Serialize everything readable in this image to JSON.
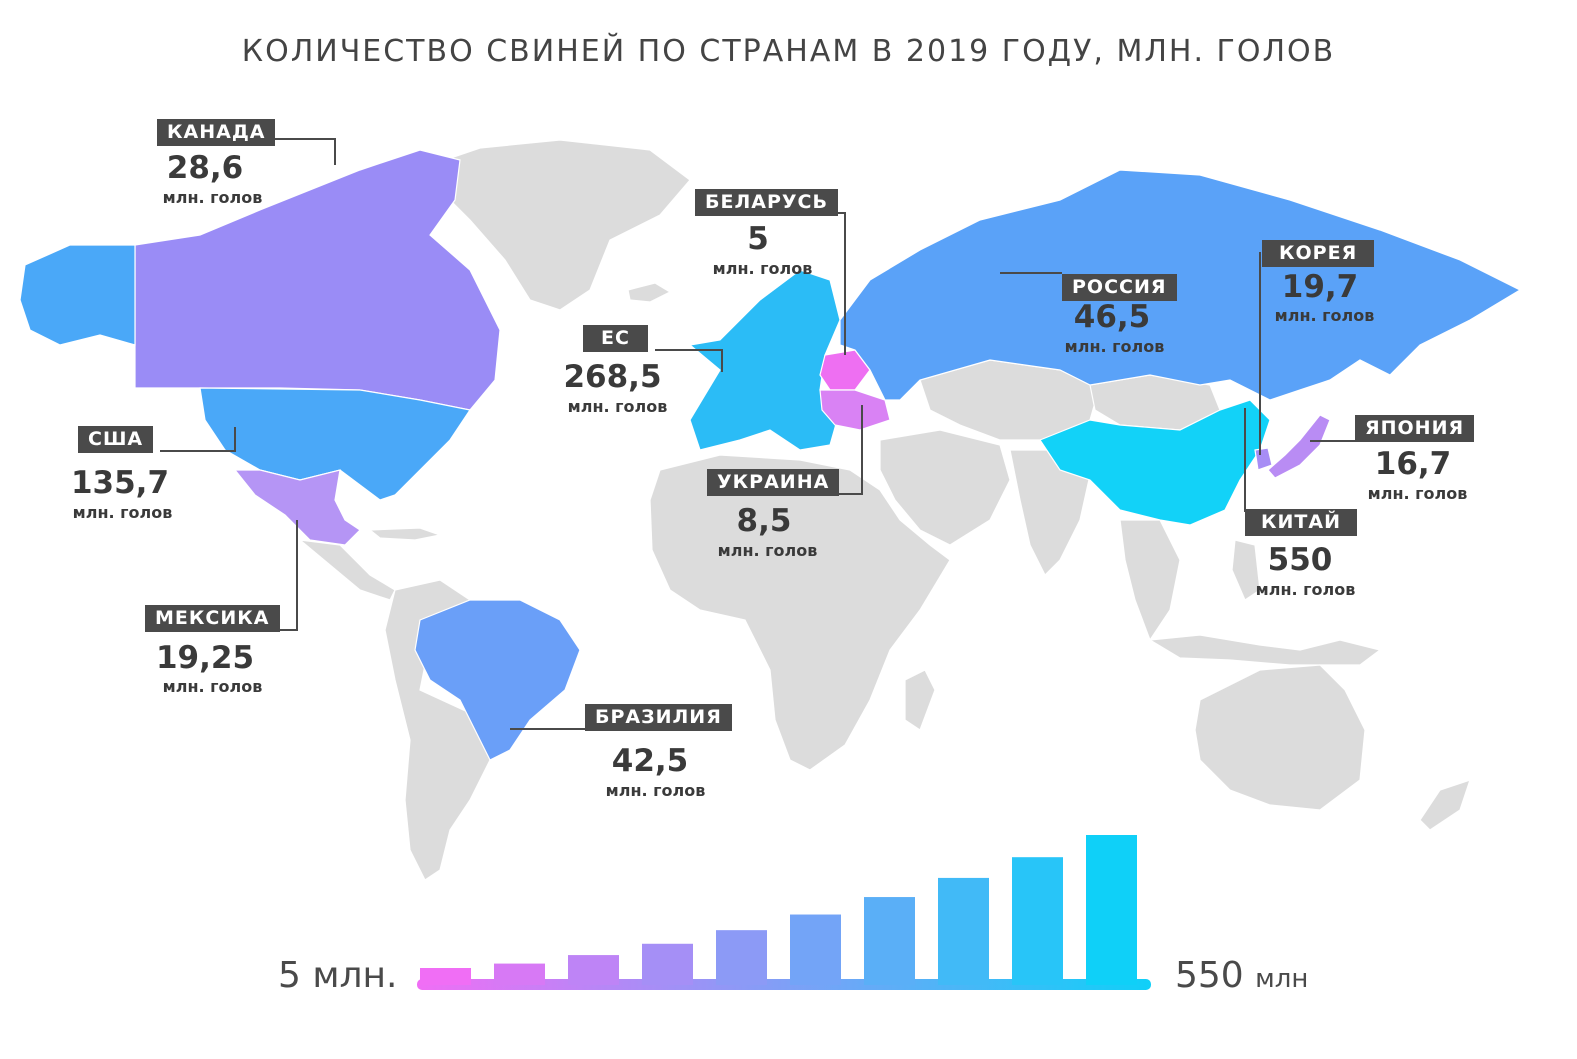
{
  "title": "КОЛИЧЕСТВО СВИНЕЙ ПО СТРАНАМ В 2019 ГОДУ, МЛН. ГОЛОВ",
  "unit_label": "млн. голов",
  "colors": {
    "land": "#dcdcdc",
    "land_border": "#ffffff",
    "tag_bg": "#4a4a4a",
    "leader_line": "#4a4a4a",
    "scale_low": "#f06ef5",
    "scale_high": "#0fd0f8"
  },
  "countries": [
    {
      "name": "КАНАДА",
      "value": "28,6",
      "color": "#9a8cf6"
    },
    {
      "name": "США",
      "value": "135,7",
      "color": "#4aa8f8"
    },
    {
      "name": "МЕКСИКА",
      "value": "19,25",
      "color": "#b595f5"
    },
    {
      "name": "БРАЗИЛИЯ",
      "value": "42,5",
      "color": "#6a9ff8"
    },
    {
      "name": "ЕС",
      "value": "268,5",
      "color": "#2bbcf6"
    },
    {
      "name": "БЕЛАРУСЬ",
      "value": "5",
      "color": "#ee6ff2"
    },
    {
      "name": "УКРАИНА",
      "value": "8,5",
      "color": "#d982f4"
    },
    {
      "name": "РОССИЯ",
      "value": "46,5",
      "color": "#5aa2f8"
    },
    {
      "name": "КОРЕЯ",
      "value": "19,7",
      "color": "#a78df5"
    },
    {
      "name": "ЯПОНИЯ",
      "value": "16,7",
      "color": "#b98cf4"
    },
    {
      "name": "КИТАЙ",
      "value": "550",
      "color": "#12d2f8"
    }
  ],
  "scale": {
    "min_label": "5 млн.",
    "max_value": "550",
    "max_unit": "млн",
    "bars": [
      1,
      2,
      3,
      4,
      5,
      6,
      7,
      8,
      9,
      10
    ]
  }
}
